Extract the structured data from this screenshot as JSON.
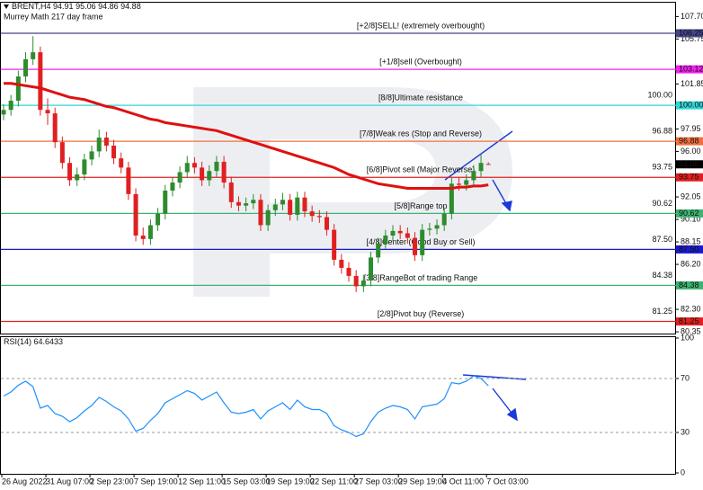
{
  "chart_data": [
    {
      "type": "candlestick",
      "title": "BRENT,H4",
      "subtitle": "Murrey Math 217 day frame",
      "categories": [
        "26 Aug 2022",
        null,
        null,
        null,
        null,
        null,
        "31 Aug 07:00",
        null,
        null,
        null,
        null,
        null,
        "2 Sep 23:00",
        null,
        null,
        null,
        null,
        null,
        "7 Sep 19:00",
        null,
        null,
        null,
        null,
        null,
        "12 Sep 11:00",
        null,
        null,
        null,
        null,
        null,
        "15 Sep 03:00",
        null,
        null,
        null,
        null,
        null,
        "19 Sep 19:00",
        null,
        null,
        null,
        null,
        null,
        "22 Sep 11:00",
        null,
        null,
        null,
        null,
        null,
        "27 Sep 03:00",
        null,
        null,
        null,
        null,
        null,
        "29 Sep 19:00",
        null,
        null,
        null,
        null,
        null,
        "4 Oct 11:00",
        null,
        null,
        null,
        null,
        null,
        "7 Oct 03:00"
      ],
      "open": [
        99.2,
        99.6,
        100.4,
        102.5,
        104.0,
        104.6,
        99.6,
        99.3,
        96.8,
        95.0,
        93.5,
        94.0,
        95.3,
        96.0,
        97.2,
        96.5,
        95.4,
        94.6,
        92.3,
        88.7,
        88.4,
        89.6,
        90.6,
        92.6,
        93.3,
        94.2,
        95.0,
        94.6,
        93.5,
        94.3,
        95.1,
        93.3,
        91.6,
        91.3,
        91.5,
        91.8,
        89.6,
        90.9,
        91.4,
        91.8,
        90.5,
        92.0,
        90.8,
        90.4,
        90.3,
        89.2,
        86.6,
        85.9,
        85.2,
        84.3,
        84.8,
        86.8,
        88.0,
        88.7,
        89.1,
        88.9,
        88.5,
        87.0,
        89.2,
        89.3,
        89.6,
        90.6,
        93.2,
        93.1,
        93.5,
        94.3,
        94.91
      ],
      "high": [
        100.1,
        100.9,
        103.0,
        104.6,
        106.0,
        105.1,
        100.6,
        99.8,
        97.3,
        95.5,
        94.6,
        95.8,
        96.5,
        97.9,
        97.7,
        97.0,
        95.9,
        95.1,
        92.8,
        89.4,
        90.1,
        91.1,
        93.1,
        93.8,
        94.7,
        95.6,
        95.5,
        95.1,
        94.8,
        95.6,
        95.6,
        93.8,
        92.1,
        92.0,
        92.3,
        92.3,
        91.4,
        91.9,
        92.4,
        92.3,
        92.5,
        92.5,
        91.3,
        90.9,
        90.8,
        89.7,
        87.1,
        86.4,
        85.7,
        85.3,
        87.3,
        88.5,
        89.2,
        89.6,
        89.6,
        89.4,
        89.0,
        89.7,
        89.8,
        90.1,
        91.1,
        93.7,
        93.7,
        94.0,
        94.8,
        95.8,
        95.06
      ],
      "low": [
        98.7,
        99.1,
        99.9,
        102.0,
        103.5,
        99.1,
        98.3,
        96.3,
        94.5,
        93.0,
        93.0,
        93.5,
        94.8,
        95.5,
        96.0,
        94.9,
        94.1,
        91.8,
        88.2,
        87.9,
        87.9,
        89.1,
        90.1,
        92.1,
        92.8,
        93.7,
        94.1,
        93.0,
        93.0,
        93.8,
        92.8,
        91.1,
        90.8,
        90.8,
        91.0,
        89.1,
        89.1,
        90.4,
        90.9,
        90.0,
        90.0,
        90.3,
        89.9,
        89.8,
        88.7,
        86.1,
        85.4,
        84.7,
        83.8,
        83.8,
        84.3,
        86.3,
        87.5,
        88.2,
        88.4,
        88.0,
        86.5,
        86.5,
        88.7,
        88.8,
        89.1,
        90.1,
        92.6,
        92.6,
        93.0,
        93.8,
        94.86
      ],
      "close": [
        99.6,
        100.4,
        102.5,
        104.0,
        104.6,
        99.6,
        99.3,
        96.8,
        95.0,
        93.5,
        94.0,
        95.3,
        96.0,
        97.2,
        96.5,
        95.4,
        94.6,
        92.3,
        88.7,
        88.4,
        89.6,
        90.6,
        92.6,
        93.3,
        94.2,
        95.0,
        94.6,
        93.5,
        94.3,
        95.1,
        93.3,
        91.6,
        91.3,
        91.5,
        91.8,
        89.6,
        90.9,
        91.4,
        91.8,
        90.5,
        92.0,
        90.8,
        90.4,
        90.3,
        89.2,
        86.6,
        85.9,
        85.2,
        84.3,
        84.8,
        86.8,
        88.0,
        88.7,
        89.1,
        88.9,
        88.5,
        87.0,
        89.2,
        89.3,
        89.6,
        90.6,
        93.2,
        93.1,
        93.5,
        94.3,
        95.0,
        94.88
      ],
      "bull_color": "#2e8b2e",
      "bear_color": "#e02020",
      "moving_average": {
        "color": "#e01010",
        "values": [
          101.9,
          101.9,
          101.8,
          101.7,
          101.6,
          101.5,
          101.3,
          101.1,
          100.9,
          100.7,
          100.6,
          100.5,
          100.3,
          100.1,
          99.9,
          99.8,
          99.6,
          99.4,
          99.2,
          99.0,
          98.8,
          98.7,
          98.5,
          98.4,
          98.3,
          98.2,
          98.1,
          98.0,
          97.9,
          97.8,
          97.6,
          97.4,
          97.2,
          97.0,
          96.8,
          96.6,
          96.4,
          96.2,
          96.0,
          95.8,
          95.6,
          95.4,
          95.2,
          95.0,
          94.8,
          94.6,
          94.3,
          94.0,
          93.8,
          93.6,
          93.4,
          93.2,
          93.1,
          93.0,
          92.9,
          92.8,
          92.8,
          92.8,
          92.8,
          92.8,
          92.8,
          92.8,
          92.9,
          92.9,
          93.0,
          93.0,
          93.1
        ]
      },
      "levels": [
        {
          "value": 106.25,
          "label": "106.25",
          "text": "[+2/8]SELL! (extremely overbought)",
          "color": "#44448a",
          "big_label": false
        },
        {
          "value": 103.12,
          "label": "103.12",
          "text": "[+1/8]sell (Overbought)",
          "color": "#ee22ee",
          "big_label": false
        },
        {
          "value": 100.0,
          "label": "100.00",
          "text": "[8/8]Ultimate resistance",
          "color": "#33d6d6",
          "big_label": true
        },
        {
          "value": 96.88,
          "label": "96.88",
          "text": "[7/8]Weak res (Stop and Reverse)",
          "color": "#f07040",
          "big_label": true
        },
        {
          "value": 93.75,
          "label": "93.75",
          "text": "[6/8]Pivot sell (Major Reverse)",
          "color": "#e02020",
          "big_label": true
        },
        {
          "value": 90.62,
          "label": "90.62",
          "text": "[5/8]Range top",
          "color": "#3cb371",
          "big_label": true
        },
        {
          "value": 87.5,
          "label": "87.50",
          "text": "[4/8]Center (Good Buy or Sell)",
          "color": "#1a1acd",
          "big_label": true
        },
        {
          "value": 84.38,
          "label": "84.38",
          "text": "[3/8]RangeBot of trading Range",
          "color": "#3cb371",
          "big_label": true
        },
        {
          "value": 81.25,
          "label": "81.25",
          "text": "[2/8]Pivot buy (Reverse)",
          "color": "#e02020",
          "big_label": true
        }
      ],
      "ylim": [
        80.2,
        108.9
      ],
      "yticks": [
        {
          "value": 107.7,
          "label": "107.70"
        },
        {
          "value": 105.75,
          "label": "105.75"
        },
        {
          "value": 101.85,
          "label": "101.85"
        },
        {
          "value": 97.95,
          "label": "97.95"
        },
        {
          "value": 96.0,
          "label": "96.00"
        },
        {
          "value": 92.05,
          "label": "92.05"
        },
        {
          "value": 90.1,
          "label": "90.10"
        },
        {
          "value": 88.15,
          "label": "88.15"
        },
        {
          "value": 86.2,
          "label": "86.20"
        },
        {
          "value": 82.3,
          "label": "82.30"
        },
        {
          "value": 80.35,
          "label": "80.35"
        }
      ]
    },
    {
      "type": "line",
      "title": "RSI(14)",
      "color": "#1e90ff",
      "values": [
        57,
        60,
        65,
        68,
        64,
        48,
        50,
        44,
        42,
        38,
        41,
        46,
        50,
        56,
        53,
        49,
        46,
        40,
        31,
        33,
        39,
        44,
        52,
        55,
        58,
        61,
        59,
        54,
        57,
        60,
        52,
        45,
        44,
        45,
        47,
        40,
        46,
        49,
        52,
        47,
        54,
        49,
        47,
        47,
        44,
        35,
        32,
        30,
        27,
        29,
        38,
        45,
        48,
        50,
        49,
        47,
        40,
        49,
        50,
        51,
        55,
        67,
        66,
        68,
        72,
        70,
        64.6433
      ],
      "ylim": [
        0,
        100
      ],
      "yticks": [
        100,
        70,
        30,
        0
      ]
    }
  ]
}
